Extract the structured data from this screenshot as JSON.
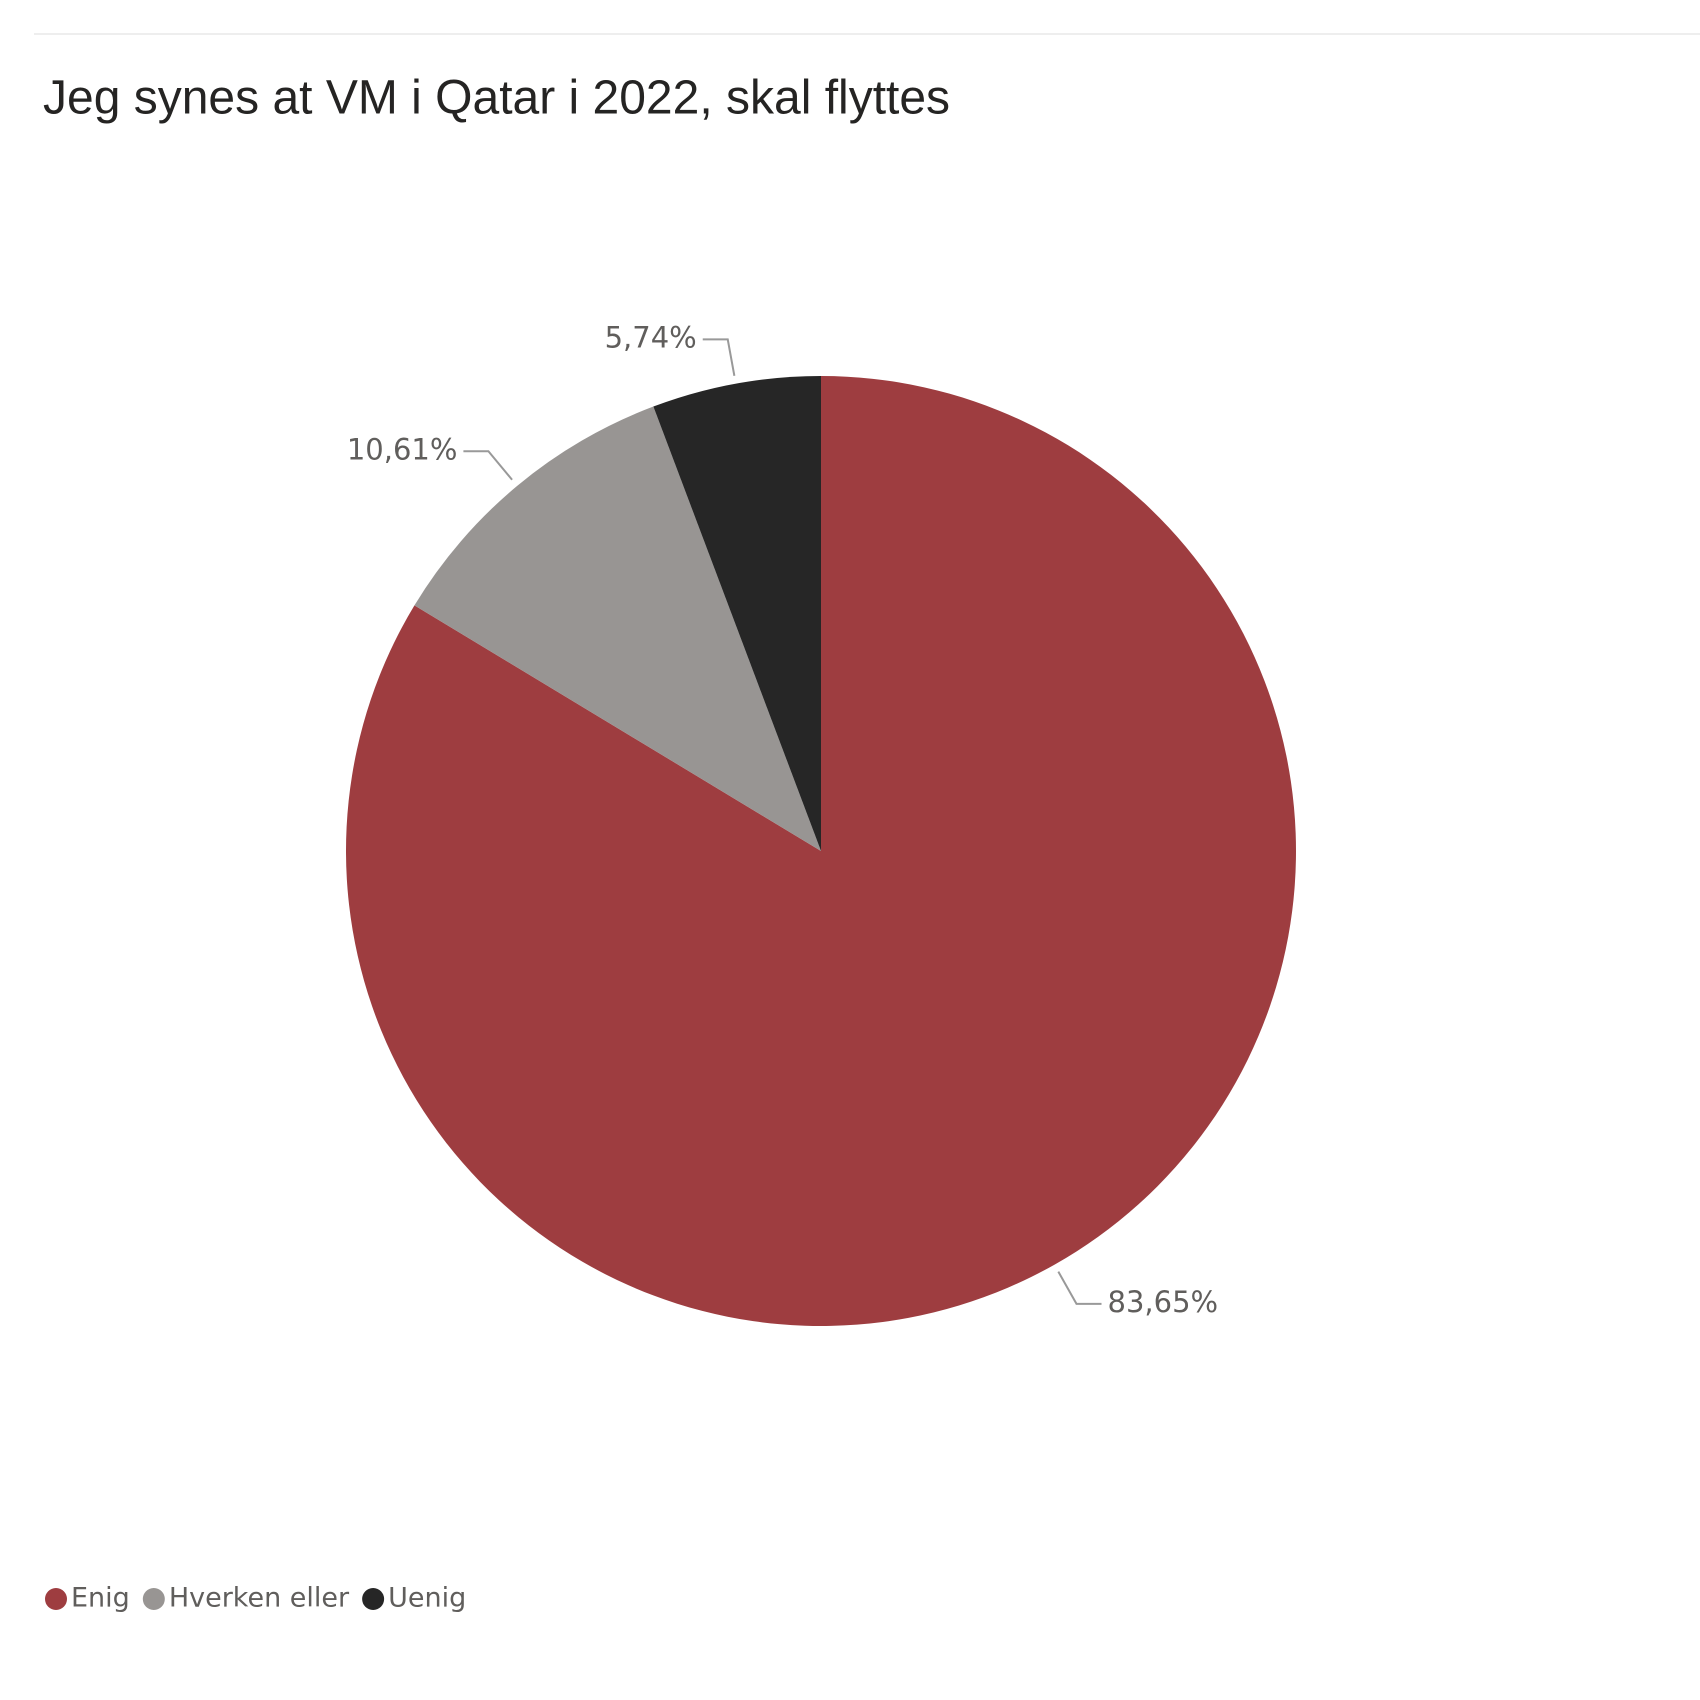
{
  "chart_data": {
    "type": "pie",
    "title": "Jeg synes at VM i Qatar i 2022, skal flyttes",
    "categories": [
      "Enig",
      "Hverken eller",
      "Uenig"
    ],
    "values": [
      83.65,
      10.61,
      5.74
    ],
    "value_labels": [
      "83,65%",
      "10,61%",
      "5,74%"
    ],
    "colors": [
      "#9e3d40",
      "#989593",
      "#262626"
    ],
    "legend": "bottom-left"
  }
}
